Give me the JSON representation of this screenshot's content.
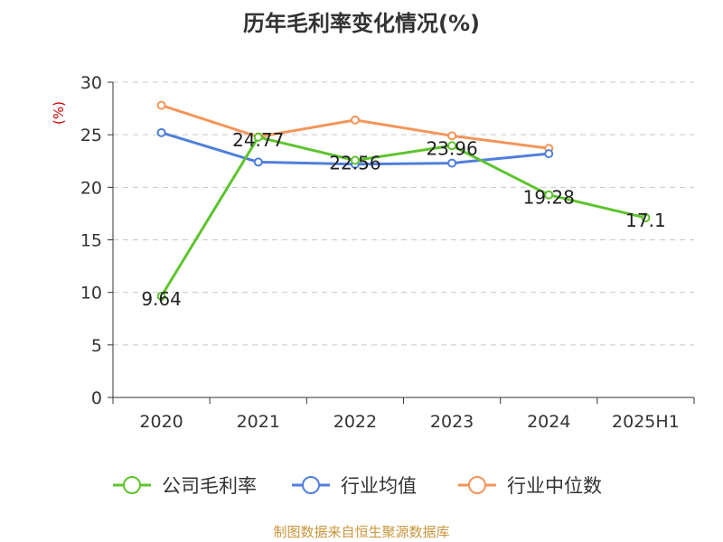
{
  "chart_data": {
    "type": "line",
    "title": "历年毛利率变化情况(%)",
    "ylabel": "(%)",
    "xlabel": "",
    "categories": [
      "2020",
      "2021",
      "2022",
      "2023",
      "2024",
      "2025H1"
    ],
    "ylim": [
      0,
      30
    ],
    "yticks": [
      "0",
      "5",
      "10",
      "15",
      "20",
      "25",
      "30"
    ],
    "grid": true,
    "legend_position": "bottom",
    "series": [
      {
        "name": "公司毛利率",
        "color": "#5ec42e",
        "values": [
          9.64,
          24.77,
          22.56,
          23.96,
          19.28,
          17.1
        ],
        "labels": [
          "9.64",
          "24.77",
          "22.56",
          "23.96",
          "19.28",
          "17.1"
        ]
      },
      {
        "name": "行业均值",
        "color": "#4f7fdc",
        "values": [
          25.2,
          22.4,
          22.2,
          22.3,
          23.2,
          null
        ]
      },
      {
        "name": "行业中位数",
        "color": "#f4955a",
        "values": [
          27.8,
          24.8,
          26.4,
          24.9,
          23.7,
          null
        ]
      }
    ]
  },
  "source": "制图数据来自恒生聚源数据库"
}
